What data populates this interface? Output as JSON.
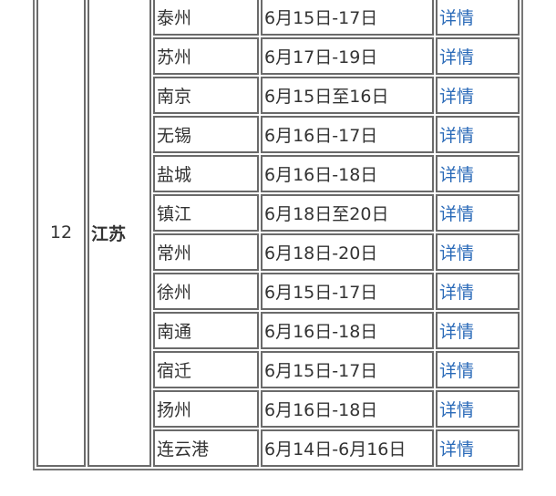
{
  "row": {
    "number": "12",
    "province": "江苏"
  },
  "link_label": "详情",
  "link_color": "#2a6ab8",
  "cities": [
    {
      "city": "泰州",
      "date": "6月15日-17日"
    },
    {
      "city": "苏州",
      "date": "6月17日-19日"
    },
    {
      "city": "南京",
      "date": "6月15日至16日"
    },
    {
      "city": "无锡",
      "date": "6月16日-17日"
    },
    {
      "city": "盐城",
      "date": "6月16日-18日"
    },
    {
      "city": "镇江",
      "date": "6月18日至20日"
    },
    {
      "city": "常州",
      "date": "6月18日-20日"
    },
    {
      "city": "徐州",
      "date": "6月15日-17日"
    },
    {
      "city": "南通",
      "date": "6月16日-18日"
    },
    {
      "city": "宿迁",
      "date": "6月15日-17日"
    },
    {
      "city": "扬州",
      "date": "6月16日-18日"
    },
    {
      "city": "连云港",
      "date": "6月14日-6月16日"
    }
  ]
}
